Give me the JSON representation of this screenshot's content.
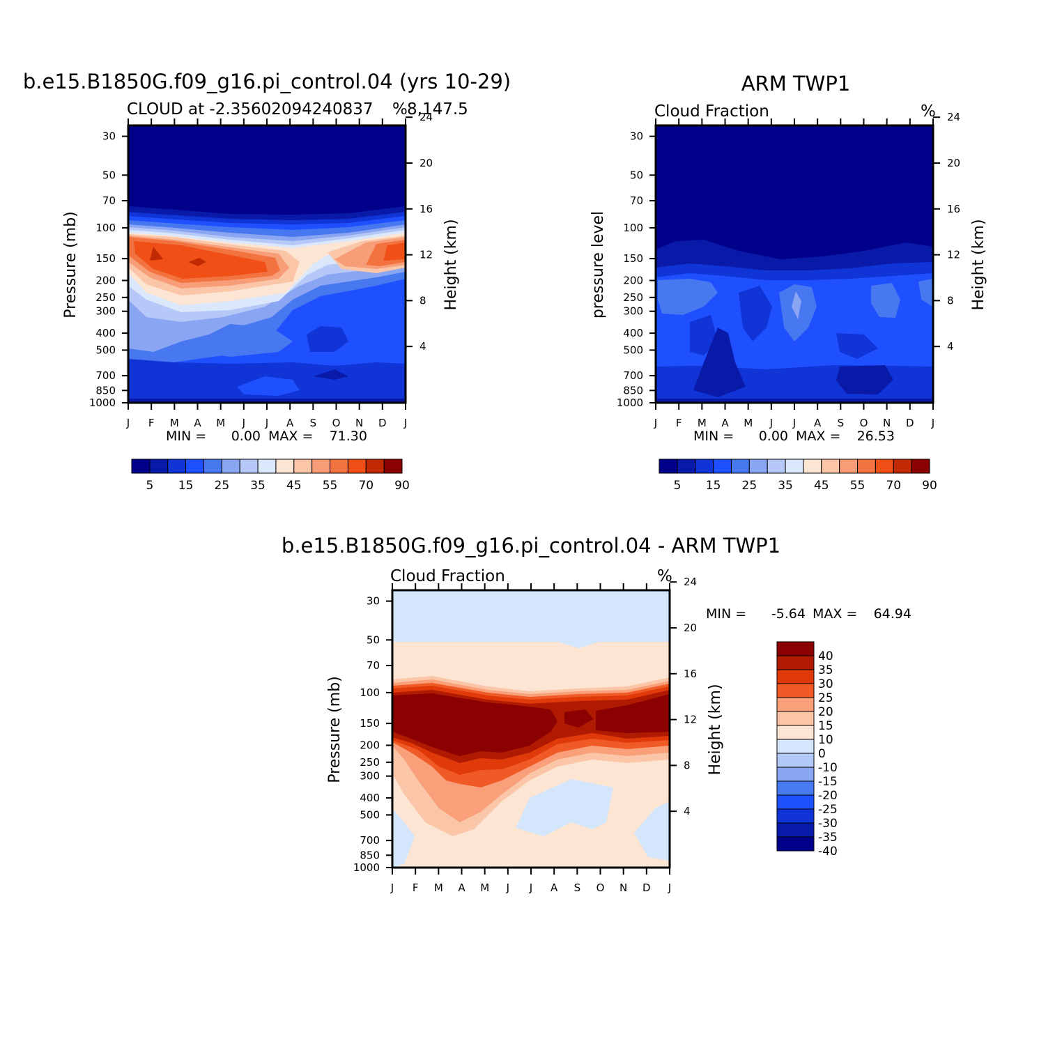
{
  "chart_data": [
    {
      "type": "contour",
      "title": "b.e15.B1850G.f09_g16.pi_control.04 (yrs 10-29)",
      "subtitle_left": "CLOUD at -2.35602094240837",
      "subtitle_right": "8,147.5",
      "units": "%",
      "ylabel": "Pressure (mb)",
      "ylabel_right": "Height (km)",
      "x_ticks": [
        "J",
        "F",
        "M",
        "A",
        "M",
        "J",
        "J",
        "A",
        "S",
        "O",
        "N",
        "D",
        "J"
      ],
      "y_ticks": [
        "30",
        "50",
        "70",
        "100",
        "150",
        "200",
        "250",
        "300",
        "400",
        "500",
        "700",
        "850",
        "1000"
      ],
      "y_right_ticks": [
        "24",
        "20",
        "16",
        "12",
        "8",
        "4"
      ],
      "min_label": "MIN =",
      "min_value": "0.00",
      "max_label": "MAX =",
      "max_value": "71.30",
      "colorbar_levels": [
        "5",
        "15",
        "25",
        "35",
        "45",
        "55",
        "70",
        "90"
      ],
      "field_bands": [
        {
          "level": "0-5",
          "color": "#00008b"
        },
        {
          "level": "5-10",
          "color": "#0a1aa8"
        },
        {
          "level": "10-15",
          "color": "#1034d6"
        },
        {
          "level": "15-20",
          "color": "#1e50ff"
        },
        {
          "level": "20-25",
          "color": "#4878f0"
        },
        {
          "level": "25-30",
          "color": "#8aa6f2"
        },
        {
          "level": "30-35",
          "color": "#b5c8f7"
        },
        {
          "level": "35-40",
          "color": "#dbe7fb"
        },
        {
          "level": "40-45",
          "color": "#fde5d3"
        },
        {
          "level": "45-50",
          "color": "#fbc6a8"
        },
        {
          "level": "50-55",
          "color": "#f79e78"
        },
        {
          "level": "55-60",
          "color": "#f27240"
        },
        {
          "level": "60-70",
          "color": "#f04f16"
        },
        {
          "level": "70-90",
          "color": "#c22a04"
        }
      ]
    },
    {
      "type": "contour",
      "title": "ARM TWP1",
      "subtitle_left": "Cloud Fraction",
      "units": "%",
      "ylabel": "pressure level",
      "ylabel_right": "Height (km)",
      "x_ticks": [
        "J",
        "F",
        "M",
        "A",
        "M",
        "J",
        "J",
        "A",
        "S",
        "O",
        "N",
        "D",
        "J"
      ],
      "y_ticks": [
        "30",
        "50",
        "70",
        "100",
        "150",
        "200",
        "250",
        "300",
        "400",
        "500",
        "700",
        "850",
        "1000"
      ],
      "y_right_ticks": [
        "24",
        "20",
        "16",
        "12",
        "8",
        "4"
      ],
      "min_label": "MIN =",
      "min_value": "0.00",
      "max_label": "MAX =",
      "max_value": "26.53",
      "colorbar_levels": [
        "5",
        "15",
        "25",
        "35",
        "45",
        "55",
        "70",
        "90"
      ]
    },
    {
      "type": "contour",
      "title": "b.e15.B1850G.f09_g16.pi_control.04 - ARM TWP1",
      "subtitle_left": "Cloud Fraction",
      "units": "%",
      "ylabel": "Pressure (mb)",
      "ylabel_right": "Height (km)",
      "x_ticks": [
        "J",
        "F",
        "M",
        "A",
        "M",
        "J",
        "J",
        "A",
        "S",
        "O",
        "N",
        "D",
        "J"
      ],
      "y_ticks": [
        "30",
        "50",
        "70",
        "100",
        "150",
        "200",
        "250",
        "300",
        "400",
        "500",
        "700",
        "850",
        "1000"
      ],
      "y_right_ticks": [
        "24",
        "20",
        "16",
        "12",
        "8",
        "4"
      ],
      "min_label": "MIN =",
      "min_value": "-5.64",
      "max_label": "MAX =",
      "max_value": "64.94",
      "colorbar_levels": [
        "40",
        "35",
        "30",
        "25",
        "20",
        "15",
        "10",
        "0",
        "-10",
        "-15",
        "-20",
        "-25",
        "-30",
        "-35",
        "-40"
      ]
    }
  ],
  "colors": {
    "seq": [
      "#00008b",
      "#0a1aa8",
      "#1034d6",
      "#1e50ff",
      "#4878f0",
      "#8aa6f2",
      "#b5c8f7",
      "#dbe7fb",
      "#fde5d3",
      "#fbc6a8",
      "#f79e78",
      "#f27240",
      "#f04f16",
      "#c22a04",
      "#8b0000"
    ],
    "diff": [
      "#8b0000",
      "#b01a00",
      "#e03a0a",
      "#f05a26",
      "#f9a07a",
      "#fbc6a8",
      "#fde5d3",
      "#d4e6fb",
      "#b3c9f7",
      "#8aa6f2",
      "#4a7af2",
      "#1e50ff",
      "#1034d6",
      "#0a1aa8",
      "#00008b"
    ]
  }
}
